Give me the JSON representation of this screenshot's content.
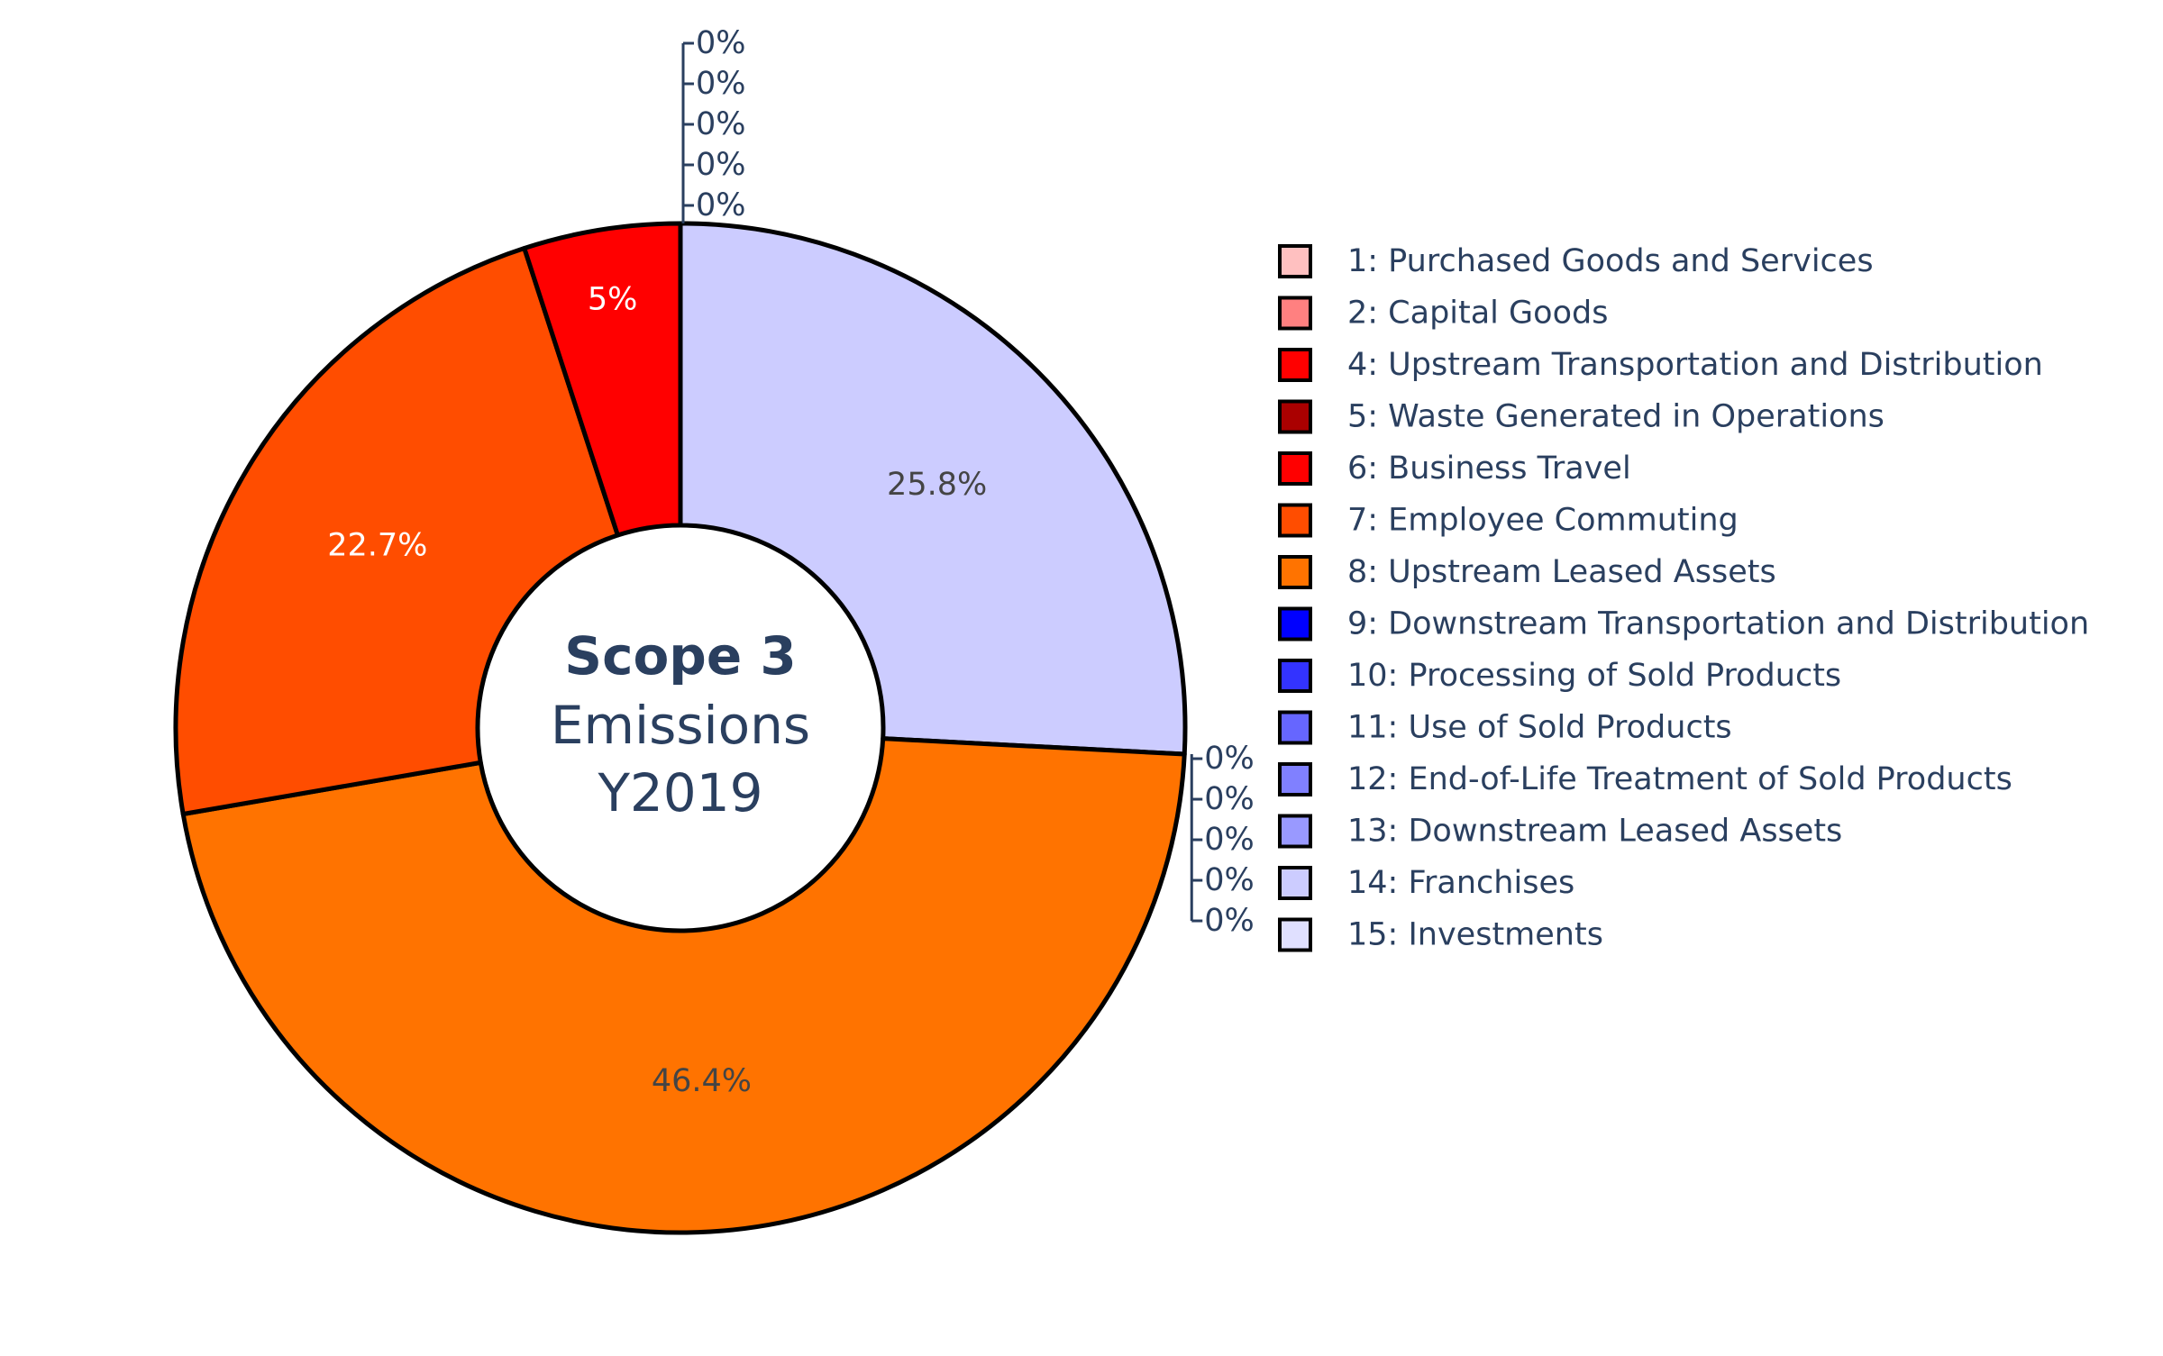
{
  "chart_data": {
    "type": "pie",
    "hole": true,
    "center_text": {
      "line1": "Scope 3",
      "line2": "Emissions",
      "line3": "Y2019"
    },
    "direction": "clockwise",
    "slices": [
      {
        "label": "14: Franchises",
        "value": 25.8,
        "text": "25.8%",
        "color": "#ccccff",
        "text_color": "#444444"
      },
      {
        "label": "15: Investments",
        "value": 0,
        "text": "0%",
        "color": "#e0e0ff"
      },
      {
        "label": "1: Purchased Goods and Services",
        "value": 0,
        "text": "0%",
        "color": "#ffc0c0"
      },
      {
        "label": "2: Capital Goods",
        "value": 0,
        "text": "0%",
        "color": "#ff8080"
      },
      {
        "label": "4: Upstream Transportation and Distribution",
        "value": 0,
        "text": "0%",
        "color": "#ff0000"
      },
      {
        "label": "5: Waste Generated in Operations",
        "value": 0,
        "text": "0%",
        "color": "#aa0000"
      },
      {
        "label": "8: Upstream Leased Assets",
        "value": 46.4,
        "text": "46.4%",
        "color": "#ff7300",
        "text_color": "#444444"
      },
      {
        "label": "7: Employee Commuting",
        "value": 22.7,
        "text": "22.7%",
        "color": "#ff4d00",
        "text_color": "#ffffff"
      },
      {
        "label": "6: Business Travel",
        "value": 5.0,
        "text": "5%",
        "color": "#ff0000",
        "text_color": "#ffffff"
      },
      {
        "label": "9: Downstream Transportation and Distribution",
        "value": 0,
        "text": "0%",
        "color": "#0000ff"
      },
      {
        "label": "10: Processing of Sold Products",
        "value": 0,
        "text": "0%",
        "color": "#3333ff"
      },
      {
        "label": "11: Use of Sold Products",
        "value": 0,
        "text": "0%",
        "color": "#6666ff"
      },
      {
        "label": "12: End-of-Life Treatment of Sold Products",
        "value": 0,
        "text": "0%",
        "color": "#8080ff"
      },
      {
        "label": "13: Downstream Leased Assets",
        "value": 0,
        "text": "0%",
        "color": "#9999ff"
      }
    ],
    "legend": {
      "placement": "right",
      "items": [
        {
          "label": "1: Purchased Goods and Services",
          "color": "#ffc0c0"
        },
        {
          "label": "2: Capital Goods",
          "color": "#ff8080"
        },
        {
          "label": "4: Upstream Transportation and Distribution",
          "color": "#ff0000"
        },
        {
          "label": "5: Waste Generated in Operations",
          "color": "#aa0000"
        },
        {
          "label": "6: Business Travel",
          "color": "#ff0000"
        },
        {
          "label": "7: Employee Commuting",
          "color": "#ff4d00"
        },
        {
          "label": "8: Upstream Leased Assets",
          "color": "#ff7300"
        },
        {
          "label": "9: Downstream Transportation and Distribution",
          "color": "#0000ff"
        },
        {
          "label": "10: Processing of Sold Products",
          "color": "#3333ff"
        },
        {
          "label": "11: Use of Sold Products",
          "color": "#6666ff"
        },
        {
          "label": "12: End-of-Life Treatment of Sold Products",
          "color": "#8080ff"
        },
        {
          "label": "13: Downstream Leased Assets",
          "color": "#9999ff"
        },
        {
          "label": "14: Franchises",
          "color": "#ccccff"
        },
        {
          "label": "15: Investments",
          "color": "#e0e0ff"
        }
      ]
    }
  }
}
